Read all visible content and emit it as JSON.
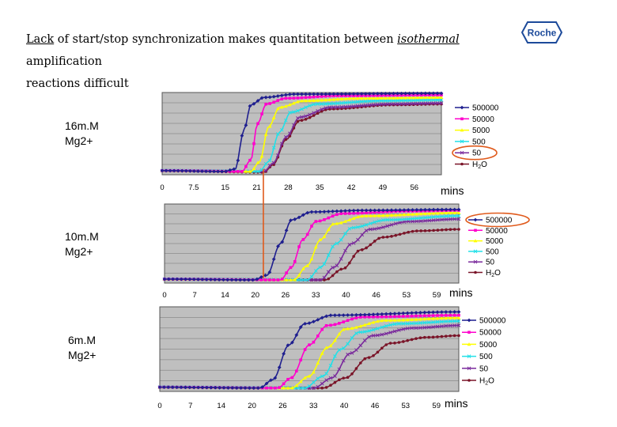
{
  "title": {
    "w1": "Lack",
    "w2": " of start/stop synchronization makes quantitation between ",
    "w3": "isothermal",
    "w4": " amplification",
    "w5": "reactions difficult"
  },
  "logo_text": "Roche",
  "colors": {
    "500000": "#1f1f8f",
    "50000": "#ff00cc",
    "5000": "#ffff00",
    "500": "#22e0e8",
    "50": "#7a2a9c",
    "H2O": "#7a1428",
    "highlight": "#e05a1c"
  },
  "unit": "mins",
  "chart_data": [
    {
      "type": "line",
      "condition": [
        "16m.M",
        "Mg2+"
      ],
      "x_tick_labels": [
        "0",
        "7.5",
        "15",
        "21",
        "28",
        "35",
        "42",
        "49",
        "56"
      ],
      "xlim": [
        0,
        63
      ],
      "ylim": [
        0,
        1
      ],
      "grid": true,
      "legend_position": "right",
      "series": [
        {
          "name": "500000",
          "values": [
            [
              0,
              0.05
            ],
            [
              14,
              0.04
            ],
            [
              16.5,
              0.07
            ],
            [
              18.5,
              0.55
            ],
            [
              20,
              0.85
            ],
            [
              23,
              0.94
            ],
            [
              30,
              0.98
            ],
            [
              63,
              0.99
            ]
          ]
        },
        {
          "name": "50000",
          "values": [
            [
              0,
              0.05
            ],
            [
              18,
              0.04
            ],
            [
              20,
              0.18
            ],
            [
              21.5,
              0.62
            ],
            [
              23.5,
              0.86
            ],
            [
              28,
              0.93
            ],
            [
              40,
              0.96
            ],
            [
              63,
              0.97
            ]
          ]
        },
        {
          "name": "5000",
          "values": [
            [
              0,
              0.05
            ],
            [
              20,
              0.04
            ],
            [
              22,
              0.16
            ],
            [
              24,
              0.58
            ],
            [
              26.5,
              0.82
            ],
            [
              32,
              0.9
            ],
            [
              45,
              0.93
            ],
            [
              63,
              0.94
            ]
          ]
        },
        {
          "name": "500",
          "values": [
            [
              0,
              0.05
            ],
            [
              22,
              0.04
            ],
            [
              24,
              0.16
            ],
            [
              26.5,
              0.52
            ],
            [
              29,
              0.76
            ],
            [
              35,
              0.86
            ],
            [
              50,
              0.9
            ],
            [
              63,
              0.91
            ]
          ]
        },
        {
          "name": "50",
          "values": [
            [
              0,
              0.05
            ],
            [
              23,
              0.04
            ],
            [
              25,
              0.14
            ],
            [
              28,
              0.46
            ],
            [
              31,
              0.7
            ],
            [
              38,
              0.82
            ],
            [
              52,
              0.86
            ],
            [
              63,
              0.87
            ]
          ]
        },
        {
          "name": "H2O",
          "values": [
            [
              0,
              0.05
            ],
            [
              23,
              0.03
            ],
            [
              25,
              0.12
            ],
            [
              28,
              0.43
            ],
            [
              31,
              0.66
            ],
            [
              38,
              0.8
            ],
            [
              52,
              0.85
            ],
            [
              63,
              0.86
            ]
          ]
        }
      ],
      "legend_circled": "50"
    },
    {
      "type": "line",
      "condition": [
        "10m.M",
        "Mg2+"
      ],
      "x_tick_labels": [
        "0",
        "7",
        "14",
        "20",
        "26",
        "33",
        "40",
        "46",
        "53",
        "59"
      ],
      "xlim": [
        0,
        66
      ],
      "ylim": [
        0,
        1
      ],
      "grid": true,
      "legend_position": "right",
      "series": [
        {
          "name": "500000",
          "values": [
            [
              0,
              0.05
            ],
            [
              20,
              0.04
            ],
            [
              23,
              0.1
            ],
            [
              26,
              0.5
            ],
            [
              28.5,
              0.8
            ],
            [
              33,
              0.9
            ],
            [
              45,
              0.92
            ],
            [
              66,
              0.93
            ]
          ]
        },
        {
          "name": "50000",
          "values": [
            [
              0,
              0.05
            ],
            [
              26,
              0.04
            ],
            [
              28.5,
              0.2
            ],
            [
              31,
              0.55
            ],
            [
              34,
              0.78
            ],
            [
              40,
              0.88
            ],
            [
              55,
              0.91
            ],
            [
              66,
              0.92
            ]
          ]
        },
        {
          "name": "5000",
          "values": [
            [
              0,
              0.05
            ],
            [
              29,
              0.04
            ],
            [
              32,
              0.22
            ],
            [
              35,
              0.55
            ],
            [
              38,
              0.75
            ],
            [
              45,
              0.85
            ],
            [
              66,
              0.89
            ]
          ]
        },
        {
          "name": "500",
          "values": [
            [
              0,
              0.05
            ],
            [
              32,
              0.04
            ],
            [
              35,
              0.2
            ],
            [
              38.5,
              0.5
            ],
            [
              42,
              0.7
            ],
            [
              50,
              0.8
            ],
            [
              66,
              0.85
            ]
          ]
        },
        {
          "name": "50",
          "values": [
            [
              0,
              0.05
            ],
            [
              35,
              0.04
            ],
            [
              38,
              0.2
            ],
            [
              42,
              0.5
            ],
            [
              46,
              0.68
            ],
            [
              55,
              0.78
            ],
            [
              66,
              0.81
            ]
          ]
        },
        {
          "name": "H2O",
          "values": [
            [
              0,
              0.05
            ],
            [
              36,
              0.04
            ],
            [
              40,
              0.18
            ],
            [
              44,
              0.42
            ],
            [
              49,
              0.58
            ],
            [
              57,
              0.66
            ],
            [
              66,
              0.68
            ]
          ]
        }
      ],
      "legend_circled": "500000"
    },
    {
      "type": "line",
      "condition": [
        "6m.M",
        "Mg2+"
      ],
      "x_tick_labels": [
        "0",
        "7",
        "14",
        "20",
        "26",
        "33",
        "40",
        "46",
        "53",
        "59"
      ],
      "xlim": [
        0,
        66
      ],
      "ylim": [
        0,
        1
      ],
      "grid": true,
      "legend_position": "right",
      "series": [
        {
          "name": "500000",
          "values": [
            [
              0,
              0.05
            ],
            [
              22,
              0.04
            ],
            [
              25,
              0.14
            ],
            [
              28.5,
              0.55
            ],
            [
              32,
              0.8
            ],
            [
              38,
              0.9
            ],
            [
              66,
              0.94
            ]
          ]
        },
        {
          "name": "50000",
          "values": [
            [
              0,
              0.05
            ],
            [
              26,
              0.04
            ],
            [
              29,
              0.16
            ],
            [
              33,
              0.55
            ],
            [
              37,
              0.78
            ],
            [
              45,
              0.88
            ],
            [
              66,
              0.9
            ]
          ]
        },
        {
          "name": "5000",
          "values": [
            [
              0,
              0.05
            ],
            [
              29,
              0.04
            ],
            [
              33,
              0.18
            ],
            [
              37,
              0.52
            ],
            [
              41,
              0.74
            ],
            [
              50,
              0.84
            ],
            [
              66,
              0.87
            ]
          ]
        },
        {
          "name": "500",
          "values": [
            [
              0,
              0.05
            ],
            [
              32,
              0.04
            ],
            [
              36,
              0.18
            ],
            [
              40,
              0.5
            ],
            [
              44,
              0.7
            ],
            [
              53,
              0.8
            ],
            [
              66,
              0.83
            ]
          ]
        },
        {
          "name": "50",
          "values": [
            [
              0,
              0.05
            ],
            [
              34,
              0.04
            ],
            [
              38,
              0.16
            ],
            [
              42,
              0.45
            ],
            [
              47,
              0.66
            ],
            [
              56,
              0.75
            ],
            [
              66,
              0.78
            ]
          ]
        },
        {
          "name": "H2O",
          "values": [
            [
              0,
              0.05
            ],
            [
              36,
              0.04
            ],
            [
              41,
              0.16
            ],
            [
              46,
              0.4
            ],
            [
              51,
              0.57
            ],
            [
              59,
              0.64
            ],
            [
              66,
              0.66
            ]
          ]
        }
      ],
      "legend_circled": ""
    }
  ],
  "connector": {
    "from_chart": 0,
    "to_chart": 1,
    "x": 22.5
  }
}
